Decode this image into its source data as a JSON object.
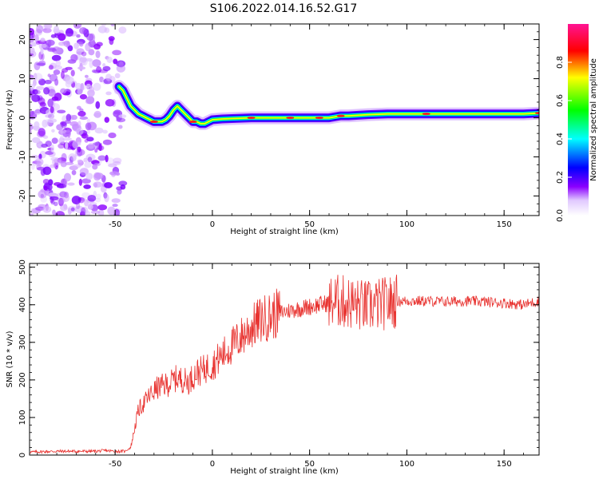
{
  "figure": {
    "title": "S106.2022.014.16.52.G17"
  },
  "chart_data": [
    {
      "type": "heatmap",
      "xlabel": "Height of straight line (km)",
      "ylabel": "Frequency (Hz)",
      "xlim": [
        -94,
        168
      ],
      "ylim": [
        -25,
        24
      ],
      "xticks": [
        -50,
        0,
        50,
        100,
        150
      ],
      "yticks": [
        -20,
        -10,
        0,
        10,
        20
      ],
      "grid": false,
      "noise_region_x": [
        -94,
        -46
      ],
      "ridge": {
        "x": [
          -48,
          -46,
          -44,
          -42,
          -40,
          -38,
          -36,
          -34,
          -32,
          -30,
          -28,
          -26,
          -24,
          -22,
          -20,
          -18,
          -16,
          -14,
          -12,
          -10,
          -8,
          -6,
          -4,
          -2,
          0,
          5,
          10,
          20,
          30,
          40,
          50,
          60,
          66,
          70,
          80,
          90,
          100,
          110,
          120,
          130,
          140,
          150,
          160,
          168
        ],
        "y": [
          8,
          7,
          5,
          3,
          2,
          1,
          0.5,
          0,
          -0.5,
          -1,
          -1,
          -1,
          -0.5,
          0.5,
          2,
          3,
          2,
          1,
          0,
          -1,
          -1,
          -1.5,
          -1.5,
          -1,
          -0.5,
          -0.3,
          -0.2,
          0,
          0,
          0,
          0,
          0,
          0.5,
          0.5,
          0.8,
          1,
          1,
          1,
          1,
          1,
          1,
          1,
          1,
          1.2
        ]
      },
      "colorbar": {
        "label": "Normalized spectral amplitude",
        "range": [
          0,
          1
        ],
        "ticks": [
          "0.0",
          "0.2",
          "0.4",
          "0.6",
          "0.8"
        ],
        "colors": [
          "#ffffff",
          "#8b00ff",
          "#0000ff",
          "#00ffff",
          "#00ff00",
          "#ffff00",
          "#ff0000",
          "#ff1493"
        ]
      }
    },
    {
      "type": "line",
      "xlabel": "Height of straight line (km)",
      "ylabel": "SNR (10 * v/v)",
      "xlim": [
        -94,
        168
      ],
      "ylim": [
        0,
        510
      ],
      "xticks": [
        -50,
        0,
        50,
        100,
        150
      ],
      "yticks": [
        0,
        100,
        200,
        300,
        400,
        500
      ],
      "grid": false,
      "series": [
        {
          "color": "#e8322f",
          "x": [
            -94,
            -80,
            -60,
            -55,
            -50,
            -45,
            -42,
            -40,
            -38,
            -35,
            -32,
            -30,
            -28,
            -25,
            -22,
            -20,
            -18,
            -15,
            -12,
            -10,
            -8,
            -5,
            -2,
            0,
            5,
            10,
            15,
            20,
            25,
            30,
            35,
            40,
            45,
            50,
            55,
            60,
            65,
            70,
            75,
            80,
            85,
            90,
            95,
            100,
            110,
            120,
            130,
            140,
            150,
            160,
            168
          ],
          "y": [
            8,
            10,
            10,
            12,
            10,
            10,
            20,
            70,
            120,
            140,
            160,
            170,
            180,
            185,
            190,
            200,
            205,
            200,
            195,
            210,
            220,
            225,
            235,
            240,
            265,
            290,
            315,
            340,
            360,
            370,
            380,
            385,
            390,
            395,
            400,
            405,
            410,
            405,
            400,
            395,
            400,
            405,
            410,
            410,
            410,
            408,
            410,
            408,
            405,
            400,
            410
          ]
        }
      ]
    }
  ]
}
